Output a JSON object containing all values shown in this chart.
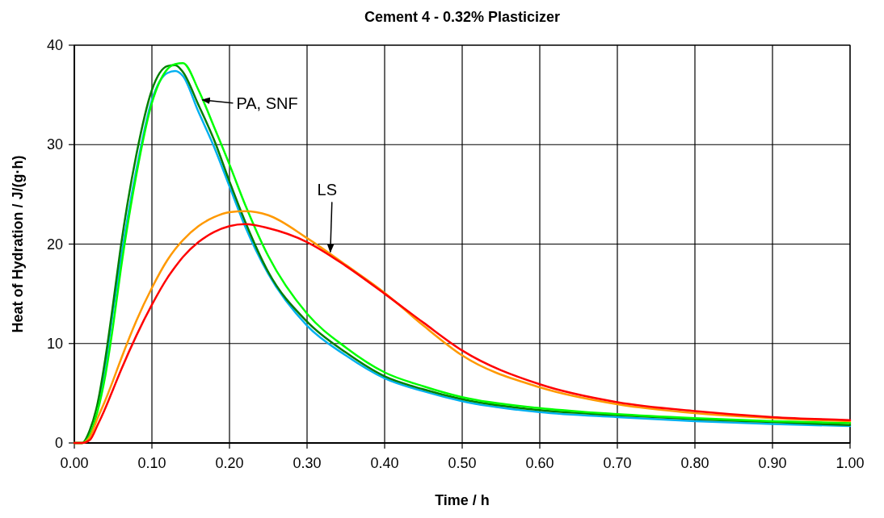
{
  "chart_data": {
    "type": "line",
    "title": "Cement 4 - 0.32% Plasticizer",
    "xlabel": "Time / h",
    "ylabel": "Heat of Hydration / J/(g·h)",
    "xlim": [
      0,
      1
    ],
    "ylim": [
      0,
      40
    ],
    "xticks": [
      {
        "value": 0,
        "label": "0.00"
      },
      {
        "value": 0.1,
        "label": "0.10"
      },
      {
        "value": 0.2,
        "label": "0.20"
      },
      {
        "value": 0.3,
        "label": "0.30"
      },
      {
        "value": 0.4,
        "label": "0.40"
      },
      {
        "value": 0.5,
        "label": "0.50"
      },
      {
        "value": 0.6,
        "label": "0.60"
      },
      {
        "value": 0.7,
        "label": "0.70"
      },
      {
        "value": 0.8,
        "label": "0.80"
      },
      {
        "value": 0.9,
        "label": "0.90"
      },
      {
        "value": 1,
        "label": "1.00"
      }
    ],
    "yticks": [
      0,
      10,
      20,
      30,
      40
    ],
    "grid": true,
    "legend": false,
    "marker": "none",
    "line_style": "solid",
    "x": [
      0,
      0.01,
      0.02,
      0.03,
      0.04,
      0.05,
      0.06,
      0.08,
      0.1,
      0.12,
      0.13,
      0.14,
      0.16,
      0.18,
      0.2,
      0.22,
      0.25,
      0.3,
      0.35,
      0.4,
      0.45,
      0.5,
      0.6,
      0.7,
      0.8,
      0.9,
      1.0
    ],
    "series": [
      {
        "color": "#00b0f0",
        "values": [
          null,
          null,
          null,
          3.7,
          7.8,
          13.3,
          18.5,
          27.5,
          34.5,
          37.2,
          37.4,
          36.9,
          33.3,
          29.8,
          25.8,
          21.8,
          17,
          11.8,
          8.8,
          6.5,
          5.2,
          4.2,
          3.1,
          2.6,
          2.2,
          1.9,
          1.7
        ]
      },
      {
        "color": "#008000",
        "values": [
          0,
          0,
          1.3,
          4,
          8.5,
          14,
          19.8,
          29,
          35.5,
          37.9,
          38,
          37.3,
          34,
          30.5,
          26.3,
          22.3,
          17.2,
          12.2,
          9.1,
          6.7,
          5.4,
          4.4,
          3.3,
          2.8,
          2.4,
          2.1,
          1.8
        ]
      },
      {
        "color": "#00ff00",
        "values": [
          0,
          0,
          0.8,
          3.2,
          6.8,
          11.8,
          17.5,
          27,
          34.2,
          37.6,
          38.1,
          38.2,
          35.5,
          31.8,
          28,
          24,
          18.8,
          13,
          9.6,
          7.1,
          5.7,
          4.6,
          3.5,
          2.9,
          2.5,
          2.2,
          2.0
        ]
      },
      {
        "color": "#ff9900",
        "values": [
          0,
          0,
          0.6,
          2.5,
          4.3,
          6.3,
          8.4,
          12.3,
          15.6,
          18.4,
          19.5,
          20.4,
          21.8,
          22.7,
          23.2,
          23.3,
          22.9,
          20.6,
          17.9,
          15.1,
          11.8,
          8.8,
          5.6,
          3.9,
          3.0,
          2.5,
          2.2
        ]
      },
      {
        "color": "#ff0000",
        "values": [
          0,
          0,
          0.3,
          1.8,
          3.5,
          5.4,
          7.3,
          10.8,
          13.9,
          16.6,
          17.7,
          18.7,
          20.2,
          21.2,
          21.8,
          22.0,
          21.6,
          20.2,
          17.8,
          15.0,
          12.1,
          9.3,
          5.9,
          4.1,
          3.2,
          2.6,
          2.3
        ]
      }
    ],
    "annotations": [
      {
        "text": "PA, SNF",
        "x": 0.165,
        "y": 34.5
      },
      {
        "text": "LS",
        "x": 0.33,
        "y": 19.2
      }
    ]
  }
}
